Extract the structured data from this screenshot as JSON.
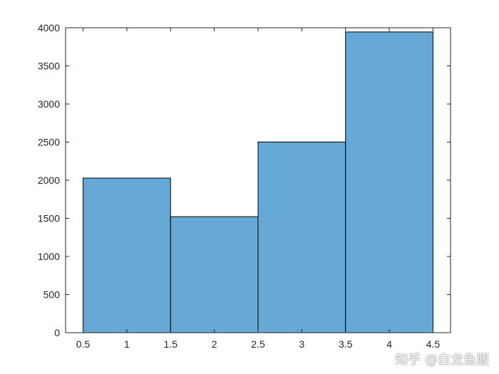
{
  "chart_data": {
    "type": "bar",
    "subtype": "histogram",
    "bin_edges": [
      0.5,
      1.5,
      2.5,
      3.5,
      4.5
    ],
    "values": [
      2028,
      1522,
      2502,
      3945
    ],
    "xlim": [
      0.3,
      4.7
    ],
    "ylim": [
      0,
      4000
    ],
    "xticks": [
      0.5,
      1,
      1.5,
      2,
      2.5,
      3,
      3.5,
      4,
      4.5
    ],
    "xtick_labels": [
      "0.5",
      "1",
      "1.5",
      "2",
      "2.5",
      "3",
      "3.5",
      "4",
      "4.5"
    ],
    "yticks": [
      0,
      500,
      1000,
      1500,
      2000,
      2500,
      3000,
      3500,
      4000
    ],
    "ytick_labels": [
      "0",
      "500",
      "1000",
      "1500",
      "2000",
      "2500",
      "3000",
      "3500",
      "4000"
    ],
    "title": "",
    "xlabel": "",
    "ylabel": "",
    "grid": false,
    "bar_color": "#66a9d6",
    "edge_color": "#000000"
  },
  "watermark": "知乎 @白龙鱼服"
}
